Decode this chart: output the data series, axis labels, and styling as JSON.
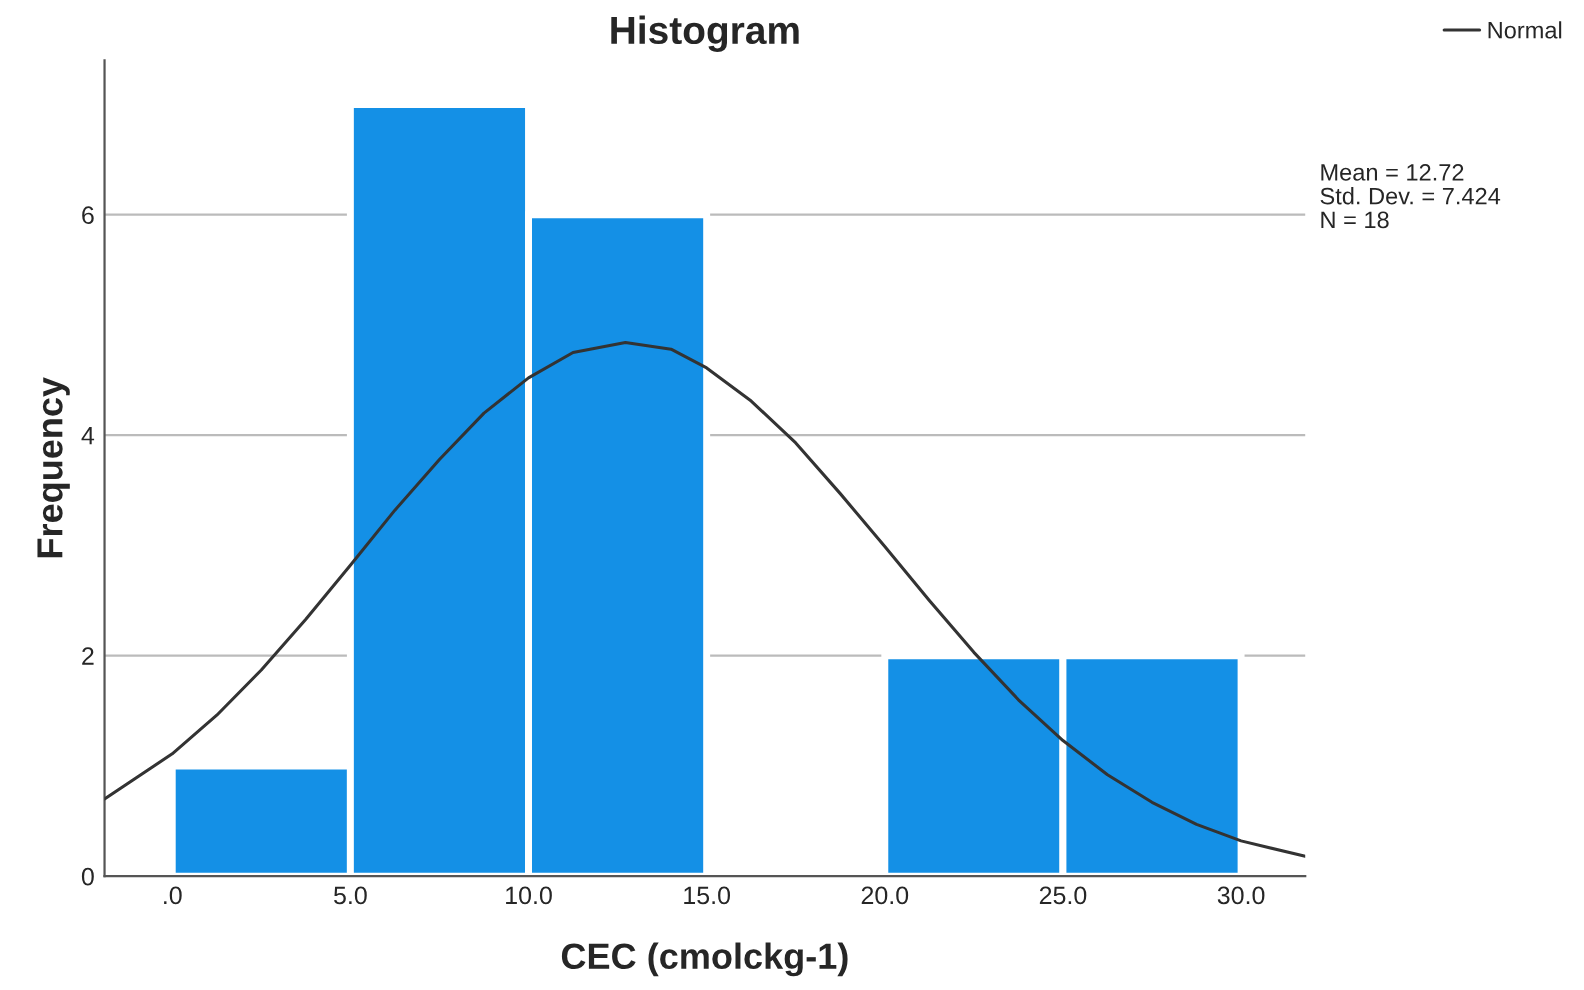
{
  "chart_data": {
    "type": "histogram",
    "title": "Histogram",
    "xlabel": "CEC (cmolckg-1)",
    "ylabel": "Frequency",
    "bins": [
      0,
      5,
      10,
      15,
      20,
      25,
      30
    ],
    "values": [
      1,
      7,
      6,
      0,
      2,
      2
    ],
    "color": "#1490e6",
    "series": [
      {
        "type": "line",
        "name": "Normal",
        "color": "#333333",
        "x": [
          -1.9,
          0,
          1.25,
          2.5,
          3.75,
          5,
          6.25,
          7.5,
          8.75,
          10,
          11.25,
          12.72,
          14,
          15,
          16.25,
          17.5,
          18.75,
          20,
          21.25,
          22.5,
          23.75,
          25,
          26.25,
          27.5,
          28.75,
          30,
          31.8
        ],
        "values": [
          0.7,
          1.11,
          1.46,
          1.87,
          2.33,
          2.82,
          3.32,
          3.78,
          4.2,
          4.52,
          4.75,
          4.84,
          4.78,
          4.61,
          4.31,
          3.93,
          3.47,
          2.99,
          2.5,
          2.03,
          1.6,
          1.23,
          0.92,
          0.67,
          0.47,
          0.32,
          0.18
        ]
      }
    ],
    "annotations": [
      "Mean = 12.72",
      "Std. Dev. = 7.424",
      "N = 18"
    ],
    "xlim": [
      -1.9,
      31.8
    ],
    "ylim": [
      0,
      7.4
    ],
    "xticks": [
      {
        "value": 0,
        "label": ".0"
      },
      {
        "value": 5,
        "label": "5.0"
      },
      {
        "value": 10,
        "label": "10.0"
      },
      {
        "value": 15,
        "label": "15.0"
      },
      {
        "value": 20,
        "label": "20.0"
      },
      {
        "value": 25,
        "label": "25.0"
      },
      {
        "value": 30,
        "label": "30.0"
      }
    ],
    "yticks": [
      0,
      2,
      4,
      6
    ],
    "grid": "y",
    "legend": "top right"
  }
}
